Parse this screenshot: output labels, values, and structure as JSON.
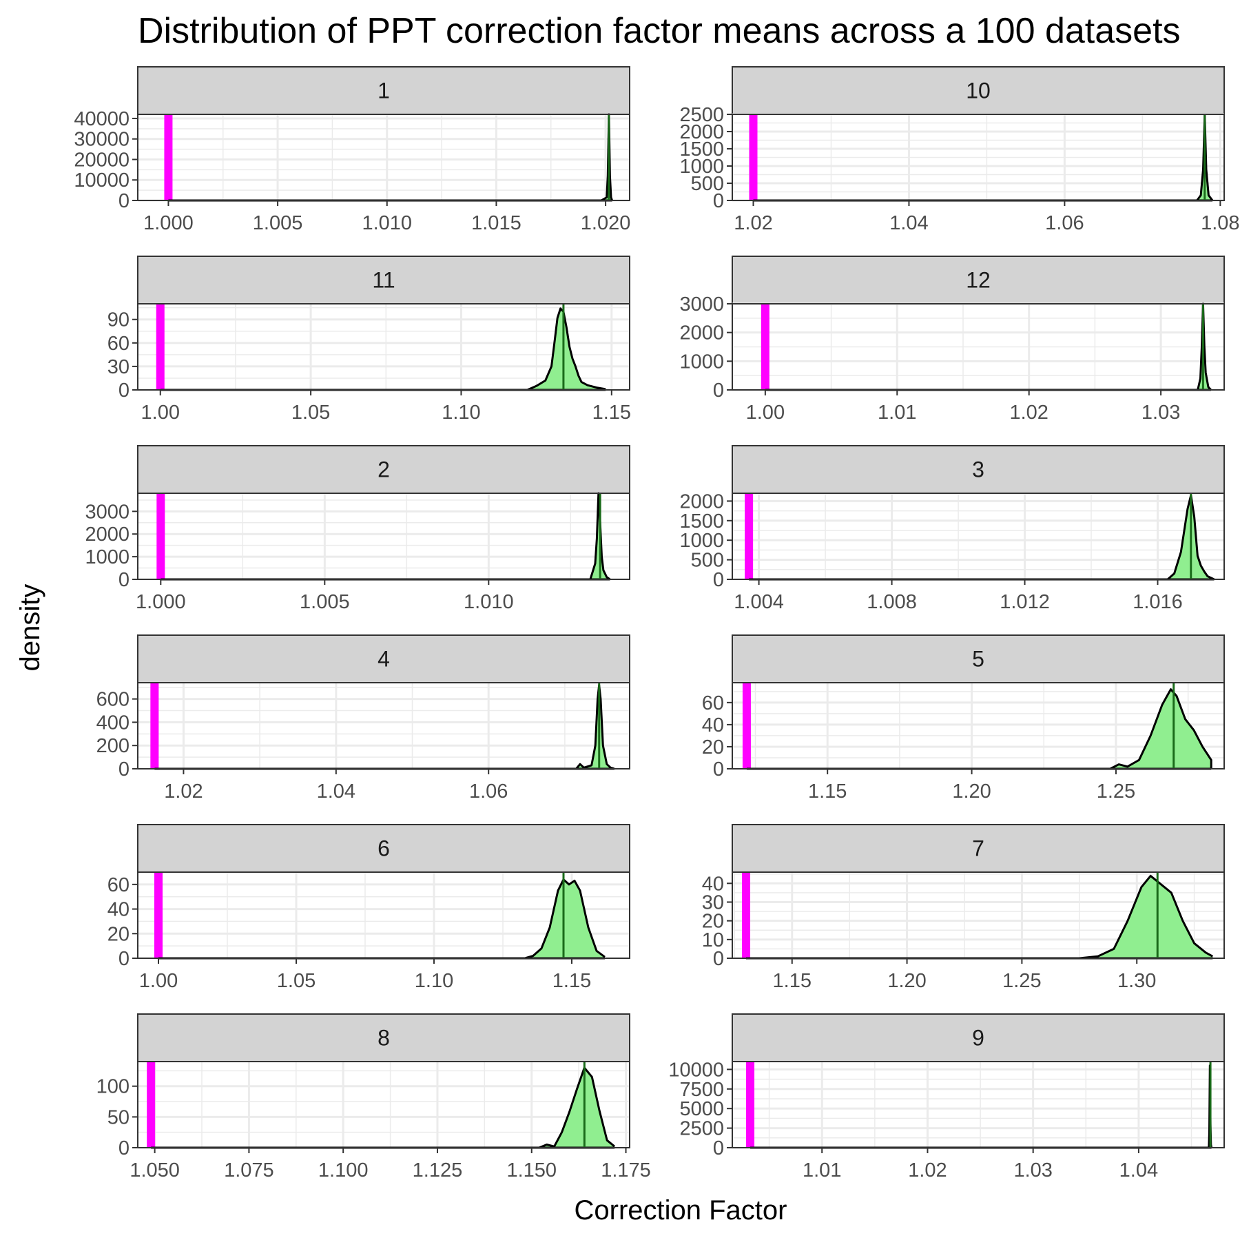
{
  "chart_data": {
    "type": "density",
    "title": "Distribution of PPT correction factor means across a 100 datasets",
    "xlabel": "Correction Factor",
    "ylabel": "density",
    "grid": true,
    "legend": "none",
    "layout": "facet_wrap, 2 columns, free scales",
    "colors": {
      "fill": "#90ee90",
      "outline": "#000000",
      "reference_line": "#ff00ff",
      "mean_line": "#1a6b1a",
      "strip_background": "#d3d3d3",
      "grid": "#ebebeb",
      "panel_border": "#333333"
    },
    "panels": [
      {
        "label": "1",
        "reference": 1.0,
        "mean": 1.02015,
        "xlim": [
          0.9986,
          1.0211
        ],
        "xticks": [
          1.0,
          1.005,
          1.01,
          1.015,
          1.02
        ],
        "xtick_labels": [
          "1.000",
          "1.005",
          "1.010",
          "1.015",
          "1.020"
        ],
        "ylim": [
          0,
          42000
        ],
        "yticks": [
          0,
          10000,
          20000,
          30000,
          40000
        ],
        "ytick_labels": [
          "0",
          "10000",
          "20000",
          "30000",
          "40000"
        ],
        "density": [
          [
            1.0198,
            0
          ],
          [
            1.02005,
            1500
          ],
          [
            1.0201,
            12000
          ],
          [
            1.02015,
            42000
          ],
          [
            1.0202,
            12000
          ],
          [
            1.02025,
            1500
          ],
          [
            1.0203,
            0
          ]
        ]
      },
      {
        "label": "10",
        "reference": 1.02,
        "mean": 1.078,
        "xlim": [
          1.0173,
          1.0805
        ],
        "xticks": [
          1.02,
          1.04,
          1.06,
          1.08
        ],
        "xtick_labels": [
          "1.02",
          "1.04",
          "1.06",
          "1.08"
        ],
        "ylim": [
          0,
          2500
        ],
        "yticks": [
          0,
          500,
          1000,
          1500,
          2000,
          2500
        ],
        "ytick_labels": [
          "0",
          "500",
          "1000",
          "1500",
          "2000",
          "2500"
        ],
        "density": [
          [
            1.077,
            0
          ],
          [
            1.0775,
            150
          ],
          [
            1.0778,
            900
          ],
          [
            1.078,
            2480
          ],
          [
            1.0782,
            900
          ],
          [
            1.0785,
            150
          ],
          [
            1.079,
            0
          ]
        ]
      },
      {
        "label": "11",
        "reference": 1.0,
        "mean": 1.134,
        "xlim": [
          0.9925,
          1.156
        ],
        "xticks": [
          1.0,
          1.05,
          1.1,
          1.15
        ],
        "xtick_labels": [
          "1.00",
          "1.05",
          "1.10",
          "1.15"
        ],
        "ylim": [
          0,
          110
        ],
        "yticks": [
          0,
          30,
          60,
          90
        ],
        "ytick_labels": [
          "0",
          "30",
          "60",
          "90"
        ],
        "density": [
          [
            1.122,
            0
          ],
          [
            1.125,
            5
          ],
          [
            1.128,
            12
          ],
          [
            1.13,
            30
          ],
          [
            1.131,
            60
          ],
          [
            1.132,
            92
          ],
          [
            1.133,
            104
          ],
          [
            1.134,
            100
          ],
          [
            1.135,
            80
          ],
          [
            1.136,
            55
          ],
          [
            1.137,
            40
          ],
          [
            1.138,
            30
          ],
          [
            1.139,
            18
          ],
          [
            1.14,
            10
          ],
          [
            1.142,
            6
          ],
          [
            1.145,
            3
          ],
          [
            1.148,
            1
          ]
        ]
      },
      {
        "label": "12",
        "reference": 1.0,
        "mean": 1.0332,
        "xlim": [
          0.9975,
          1.0348
        ],
        "xticks": [
          1.0,
          1.01,
          1.02,
          1.03
        ],
        "xtick_labels": [
          "1.00",
          "1.01",
          "1.02",
          "1.03"
        ],
        "ylim": [
          0,
          3000
        ],
        "yticks": [
          0,
          1000,
          2000,
          3000
        ],
        "ytick_labels": [
          "0",
          "1000",
          "2000",
          "3000"
        ],
        "density": [
          [
            1.0328,
            0
          ],
          [
            1.033,
            400
          ],
          [
            1.0331,
            1500
          ],
          [
            1.0332,
            3000
          ],
          [
            1.0333,
            1500
          ],
          [
            1.0334,
            600
          ],
          [
            1.0336,
            100
          ],
          [
            1.0338,
            0
          ]
        ]
      },
      {
        "label": "2",
        "reference": 1.0,
        "mean": 1.0134,
        "xlim": [
          0.9993,
          1.0143
        ],
        "xticks": [
          1.0,
          1.005,
          1.01
        ],
        "xtick_labels": [
          "1.000",
          "1.005",
          "1.010"
        ],
        "ylim": [
          0,
          3800
        ],
        "yticks": [
          0,
          1000,
          2000,
          3000
        ],
        "ytick_labels": [
          "0",
          "1000",
          "2000",
          "3000"
        ],
        "density": [
          [
            1.0131,
            0
          ],
          [
            1.01325,
            700
          ],
          [
            1.0133,
            1800
          ],
          [
            1.01335,
            3800
          ],
          [
            1.0134,
            2500
          ],
          [
            1.01345,
            1000
          ],
          [
            1.0135,
            400
          ],
          [
            1.0136,
            100
          ],
          [
            1.0137,
            0
          ]
        ]
      },
      {
        "label": "3",
        "reference": 1.0037,
        "mean": 1.017,
        "xlim": [
          1.0032,
          1.018
        ],
        "xticks": [
          1.004,
          1.008,
          1.012,
          1.016
        ],
        "xtick_labels": [
          "1.004",
          "1.008",
          "1.012",
          "1.016"
        ],
        "ylim": [
          0,
          2200
        ],
        "yticks": [
          0,
          500,
          1000,
          1500,
          2000
        ],
        "ytick_labels": [
          "0",
          "500",
          "1000",
          "1500",
          "2000"
        ],
        "density": [
          [
            1.0163,
            0
          ],
          [
            1.0165,
            150
          ],
          [
            1.0167,
            700
          ],
          [
            1.0169,
            1800
          ],
          [
            1.017,
            2150
          ],
          [
            1.0171,
            1600
          ],
          [
            1.0172,
            600
          ],
          [
            1.0173,
            350
          ],
          [
            1.0174,
            200
          ],
          [
            1.0175,
            80
          ],
          [
            1.0177,
            0
          ]
        ]
      },
      {
        "label": "4",
        "reference": 1.0162,
        "mean": 1.0745,
        "xlim": [
          1.014,
          1.0785
        ],
        "xticks": [
          1.02,
          1.04,
          1.06
        ],
        "xtick_labels": [
          "1.02",
          "1.04",
          "1.06"
        ],
        "ylim": [
          0,
          740
        ],
        "yticks": [
          0,
          200,
          400,
          600
        ],
        "ytick_labels": [
          "0",
          "200",
          "400",
          "600"
        ],
        "density": [
          [
            1.0715,
            0
          ],
          [
            1.072,
            40
          ],
          [
            1.0725,
            10
          ],
          [
            1.0735,
            30
          ],
          [
            1.074,
            200
          ],
          [
            1.0743,
            600
          ],
          [
            1.0745,
            720
          ],
          [
            1.0747,
            600
          ],
          [
            1.075,
            200
          ],
          [
            1.0755,
            40
          ],
          [
            1.076,
            10
          ],
          [
            1.0765,
            0
          ]
        ]
      },
      {
        "label": "5",
        "reference": 1.122,
        "mean": 1.27,
        "xlim": [
          1.117,
          1.2875
        ],
        "xticks": [
          1.15,
          1.2,
          1.25
        ],
        "xtick_labels": [
          "1.15",
          "1.20",
          "1.25"
        ],
        "ylim": [
          0,
          78
        ],
        "yticks": [
          0,
          20,
          40,
          60
        ],
        "ytick_labels": [
          "0",
          "20",
          "40",
          "60"
        ],
        "density": [
          [
            1.248,
            0
          ],
          [
            1.251,
            4
          ],
          [
            1.254,
            2
          ],
          [
            1.258,
            8
          ],
          [
            1.262,
            30
          ],
          [
            1.266,
            58
          ],
          [
            1.269,
            72
          ],
          [
            1.271,
            66
          ],
          [
            1.274,
            45
          ],
          [
            1.277,
            35
          ],
          [
            1.28,
            20
          ],
          [
            1.283,
            8
          ],
          [
            1.283,
            0
          ]
        ]
      },
      {
        "label": "6",
        "reference": 1.0,
        "mean": 1.147,
        "xlim": [
          0.9925,
          1.171
        ],
        "xticks": [
          1.0,
          1.05,
          1.1,
          1.15
        ],
        "xtick_labels": [
          "1.00",
          "1.05",
          "1.10",
          "1.15"
        ],
        "ylim": [
          0,
          70
        ],
        "yticks": [
          0,
          20,
          40,
          60
        ],
        "ytick_labels": [
          "0",
          "20",
          "40",
          "60"
        ],
        "density": [
          [
            1.133,
            0
          ],
          [
            1.136,
            2
          ],
          [
            1.139,
            8
          ],
          [
            1.142,
            25
          ],
          [
            1.145,
            55
          ],
          [
            1.147,
            64
          ],
          [
            1.149,
            60
          ],
          [
            1.151,
            63
          ],
          [
            1.153,
            55
          ],
          [
            1.156,
            25
          ],
          [
            1.159,
            6
          ],
          [
            1.162,
            1
          ]
        ]
      },
      {
        "label": "7",
        "reference": 1.13,
        "mean": 1.309,
        "xlim": [
          1.124,
          1.338
        ],
        "xticks": [
          1.15,
          1.2,
          1.25,
          1.3
        ],
        "xtick_labels": [
          "1.15",
          "1.20",
          "1.25",
          "1.30"
        ],
        "ylim": [
          0,
          46
        ],
        "yticks": [
          0,
          10,
          20,
          30,
          40
        ],
        "ytick_labels": [
          "0",
          "10",
          "20",
          "30",
          "40"
        ],
        "density": [
          [
            1.275,
            0
          ],
          [
            1.283,
            1
          ],
          [
            1.29,
            5
          ],
          [
            1.296,
            20
          ],
          [
            1.302,
            38
          ],
          [
            1.306,
            44
          ],
          [
            1.31,
            40
          ],
          [
            1.315,
            35
          ],
          [
            1.32,
            20
          ],
          [
            1.325,
            8
          ],
          [
            1.33,
            3
          ],
          [
            1.333,
            1
          ]
        ]
      },
      {
        "label": "8",
        "reference": 1.049,
        "mean": 1.164,
        "xlim": [
          1.0455,
          1.176
        ],
        "xticks": [
          1.05,
          1.075,
          1.1,
          1.125,
          1.15,
          1.175
        ],
        "xtick_labels": [
          "1.050",
          "1.075",
          "1.100",
          "1.125",
          "1.150",
          "1.175"
        ],
        "ylim": [
          0,
          140
        ],
        "yticks": [
          0,
          50,
          100
        ],
        "ytick_labels": [
          "0",
          "50",
          "100"
        ],
        "density": [
          [
            1.152,
            0
          ],
          [
            1.154,
            5
          ],
          [
            1.156,
            2
          ],
          [
            1.158,
            25
          ],
          [
            1.16,
            58
          ],
          [
            1.162,
            95
          ],
          [
            1.164,
            130
          ],
          [
            1.166,
            115
          ],
          [
            1.168,
            60
          ],
          [
            1.17,
            12
          ],
          [
            1.172,
            2
          ]
        ]
      },
      {
        "label": "9",
        "reference": 1.0032,
        "mean": 1.0468,
        "xlim": [
          1.0015,
          1.0481
        ],
        "xticks": [
          1.01,
          1.02,
          1.03,
          1.04
        ],
        "xtick_labels": [
          "1.01",
          "1.02",
          "1.03",
          "1.04"
        ],
        "ylim": [
          0,
          11000
        ],
        "yticks": [
          0,
          2500,
          5000,
          7500,
          10000
        ],
        "ytick_labels": [
          "0",
          "2500",
          "5000",
          "7500",
          "10000"
        ],
        "density": [
          [
            1.04665,
            0
          ],
          [
            1.0467,
            2000
          ],
          [
            1.04675,
            10500
          ],
          [
            1.0468,
            3000
          ],
          [
            1.04685,
            400
          ],
          [
            1.0469,
            0
          ]
        ]
      }
    ]
  }
}
